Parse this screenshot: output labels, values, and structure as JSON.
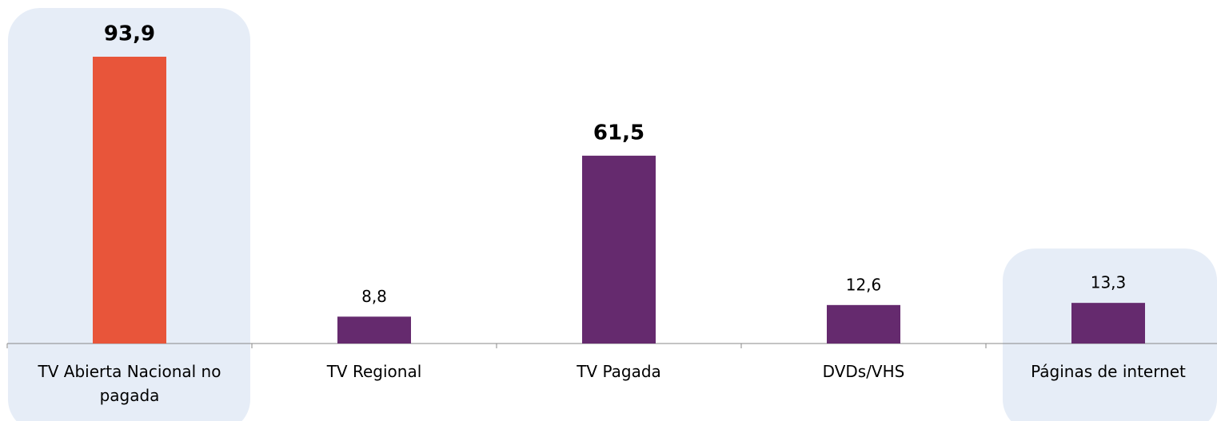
{
  "chart_data": {
    "type": "bar",
    "categories": [
      "TV Abierta Nacional no pagada",
      "TV Regional",
      "TV Pagada",
      "DVDs/VHS",
      "Páginas de internet"
    ],
    "values": [
      93.9,
      8.8,
      61.5,
      12.6,
      13.3
    ],
    "value_labels": [
      "93,9",
      "8,8",
      "61,5",
      "12,6",
      "13,3"
    ],
    "colors": [
      "#e8553a",
      "#652a6e",
      "#652a6e",
      "#652a6e",
      "#652a6e"
    ],
    "highlighted": [
      0,
      4
    ],
    "bold_labels": [
      0,
      2
    ],
    "highlight_color": "#e6edf7"
  }
}
